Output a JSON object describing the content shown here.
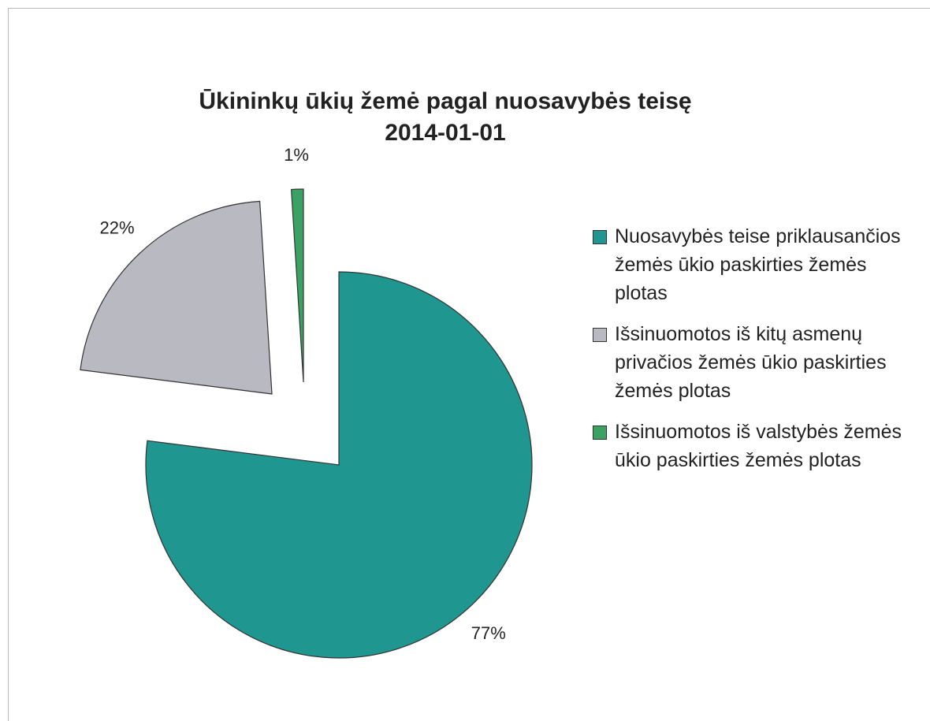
{
  "chart_data": {
    "type": "pie",
    "title": "Ūkininkų ūkių žemė pagal nuosavybės teisę",
    "subtitle": "2014-01-01",
    "categories": [
      "Nuosavybės teise priklausančios žemės ūkio paskirties žemės plotas",
      "Išsinuomotos iš kitų asmenų privačios žemės ūkio paskirties žemės plotas",
      "Išsinuomotos iš valstybės žemės ūkio paskirties žemės plotas"
    ],
    "values": [
      77,
      22,
      1
    ],
    "value_labels": [
      "77%",
      "22%",
      "1%"
    ],
    "colors": [
      "#1f968f",
      "#b9b9c1",
      "#3aa262"
    ]
  }
}
